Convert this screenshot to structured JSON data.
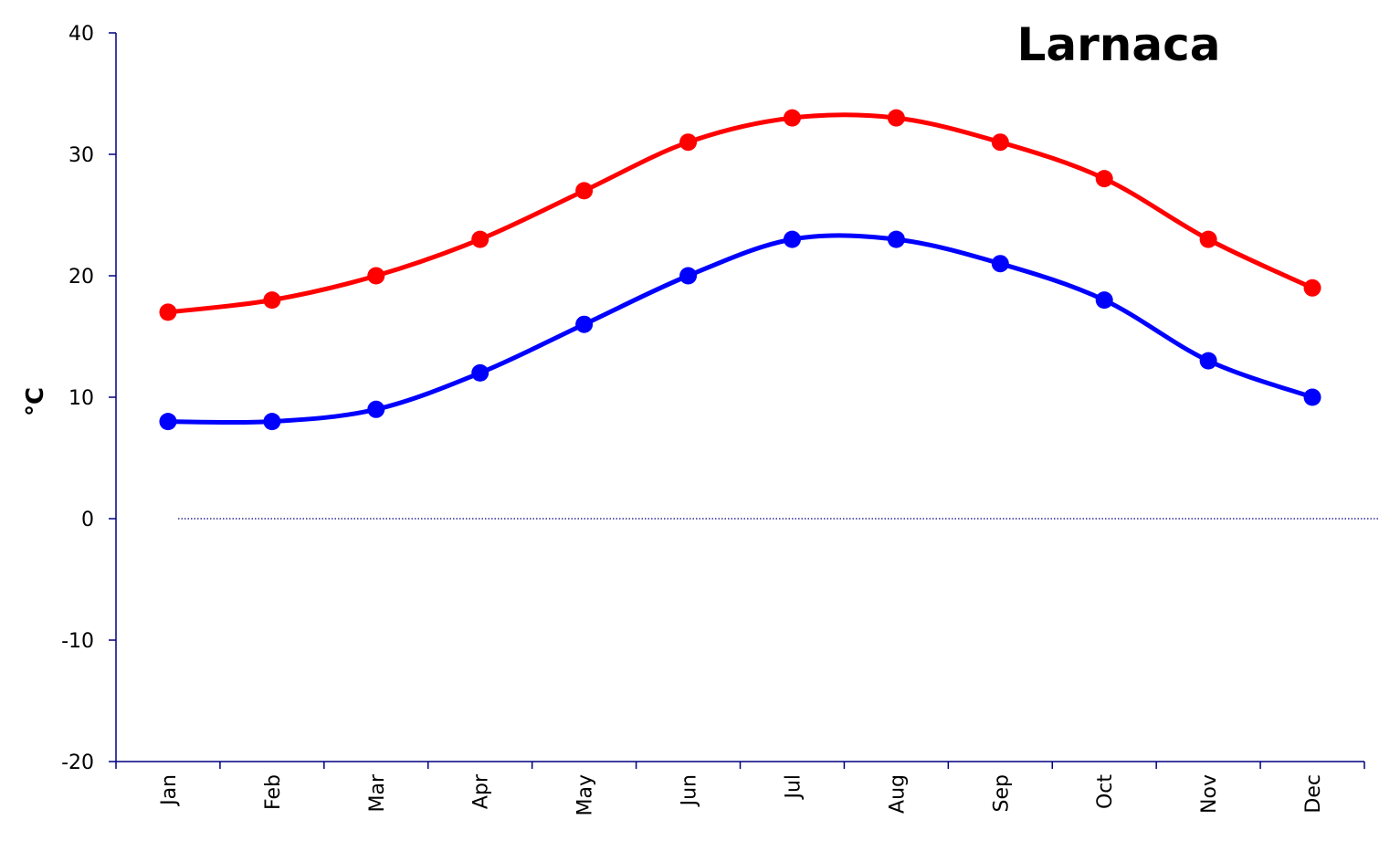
{
  "chart_data": {
    "type": "line",
    "title": "Larnaca",
    "xlabel": "",
    "ylabel": "°C",
    "categories": [
      "Jan",
      "Feb",
      "Mar",
      "Apr",
      "May",
      "Jun",
      "Jul",
      "Aug",
      "Sep",
      "Oct",
      "Nov",
      "Dec"
    ],
    "ylim": [
      -20,
      40
    ],
    "yticks": [
      -20,
      -10,
      0,
      10,
      20,
      30,
      40
    ],
    "grid": false,
    "zero_line": "dotted",
    "series": [
      {
        "color": "#ff0000",
        "values": [
          17,
          18,
          20,
          23,
          27,
          31,
          33,
          33,
          31,
          28,
          23,
          19
        ]
      },
      {
        "color": "#0000ff",
        "values": [
          8,
          8,
          9,
          12,
          16,
          20,
          23,
          23,
          21,
          18,
          13,
          10
        ]
      }
    ]
  }
}
